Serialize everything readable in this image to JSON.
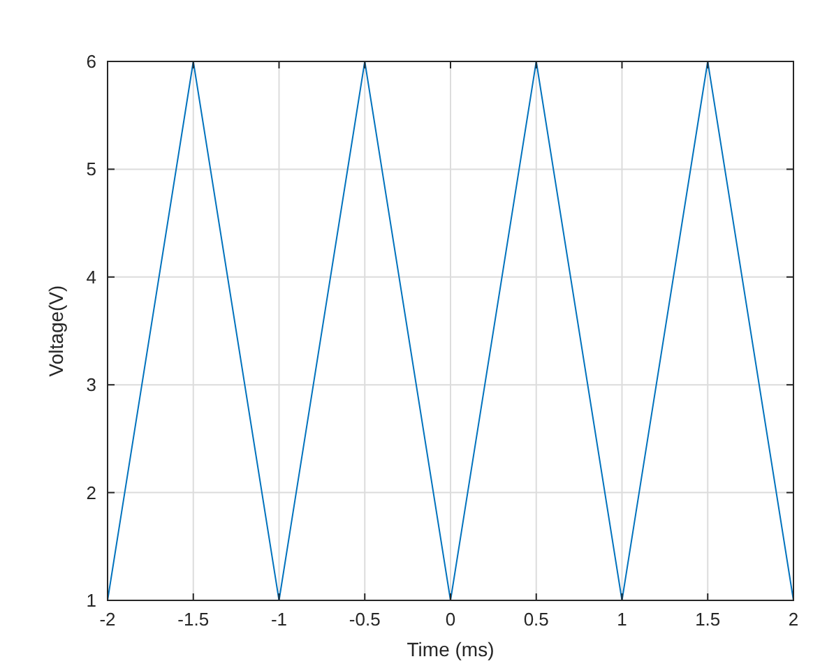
{
  "chart_data": {
    "type": "line",
    "xlabel": "Time (ms)",
    "ylabel": "Voltage(V)",
    "x": [
      -2,
      -1.5,
      -1,
      -0.5,
      0,
      0.5,
      1,
      1.5,
      2
    ],
    "series": [
      {
        "color": "#0072bd",
        "values": [
          1,
          6,
          1,
          6,
          1,
          6,
          1,
          6,
          1
        ]
      }
    ],
    "xlim": [
      -2,
      2
    ],
    "xticks": [
      -2,
      -1.5,
      -1,
      -0.5,
      0,
      0.5,
      1,
      1.5,
      2
    ],
    "ylim": [
      1,
      6
    ],
    "yticks": [
      1,
      2,
      3,
      4,
      5,
      6
    ],
    "grid": true
  }
}
